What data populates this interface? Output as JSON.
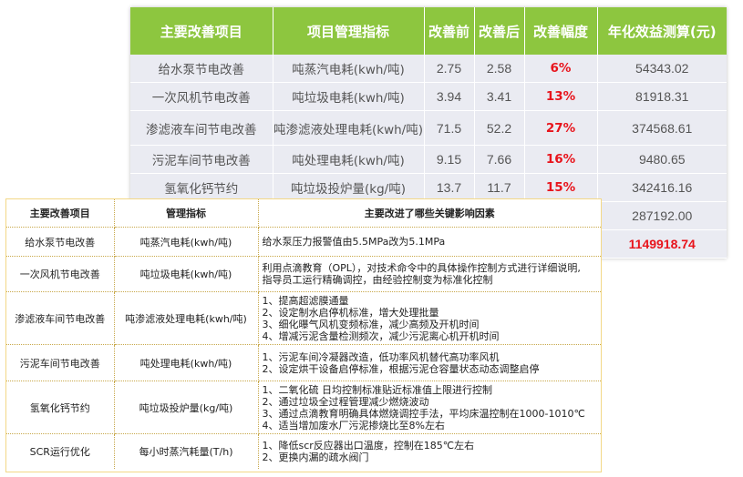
{
  "back_table": {
    "headers": [
      "主要改善项目",
      "项目管理指标",
      "改善前",
      "改善后",
      "改善幅度",
      "年化效益测算(元)"
    ],
    "rows": [
      {
        "project": "给水泵节电改善",
        "metric": "吨蒸汽电耗(kwh/吨)",
        "before": "2.75",
        "after": "2.58",
        "change": "6%",
        "benefit": "54343.02"
      },
      {
        "project": "一次风机节电改善",
        "metric": "吨垃圾电耗(kwh/吨)",
        "before": "3.94",
        "after": "3.41",
        "change": "13%",
        "benefit": "81918.31"
      },
      {
        "project": "渗滤液车间节电改善",
        "metric": "吨渗滤液处理电耗(kwh/吨)",
        "before": "71.5",
        "after": "52.2",
        "change": "27%",
        "benefit": "374568.61"
      },
      {
        "project": "污泥车间节电改善",
        "metric": "吨处理电耗(kwh/吨)",
        "before": "9.15",
        "after": "7.66",
        "change": "16%",
        "benefit": "9480.65"
      },
      {
        "project": "氢氧化钙节约",
        "metric": "吨垃圾投炉量(kg/吨)",
        "before": "13.7",
        "after": "11.7",
        "change": "15%",
        "benefit": "342416.16"
      },
      {
        "project": "",
        "metric": "",
        "before": "",
        "after": "",
        "change": "",
        "benefit": "287192.00"
      },
      {
        "project": "",
        "metric": "",
        "before": "",
        "after": "",
        "change": "",
        "benefit": "1149918.74"
      }
    ]
  },
  "front_table": {
    "headers": [
      "主要改善项目",
      "管理指标",
      "主要改进了哪些关键影响因素"
    ],
    "rows": [
      {
        "project": "给水泵节电改善",
        "metric": "吨蒸汽电耗(kwh/吨)",
        "factors": [
          "给水泵压力报警值由5.5MPa改为5.1MPa"
        ]
      },
      {
        "project": "一次风机节电改善",
        "metric": "吨垃圾电耗(kwh/吨)",
        "factors": [
          "利用点滴教育（OPL），对技术命令中的具体操作控制方式进行详细说明,",
          "指导员工运行精确调控，由经验控制变为标准化控制"
        ]
      },
      {
        "project": "渗滤液车间节电改善",
        "metric": "吨渗滤液处理电耗(kwh/吨)",
        "factors": [
          "1、提高超滤膜通量",
          "2、设定制水启停机标准，增大处理批量",
          "3、细化曝气风机变频标准，减少高频及开机时间",
          "4、增减污泥含量检测频次，减少污泥离心机开机时间"
        ]
      },
      {
        "project": "污泥车间节电改善",
        "metric": "吨处理电耗(kwh/吨)",
        "factors": [
          "1、污泥车间冷凝器改造，低功率风机替代高功率风机",
          "2、设定烘干设备启停标准，根据污泥仓容量状态动态调整启停"
        ]
      },
      {
        "project": "氢氧化钙节约",
        "metric": "吨垃圾投炉量(kg/吨)",
        "factors": [
          "1、二氧化硫 日均控制标准贴近标准值上限进行控制",
          "2、通过垃圾全过程管理减少燃烧波动",
          "3、通过点滴教育明确具体燃烧调控手法，平均床温控制在1000-1010℃",
          "4、适当增加废水厂污泥掺烧比至8%左右"
        ]
      },
      {
        "project": "SCR运行优化",
        "metric": "每小时蒸汽耗量(T/h)",
        "factors": [
          "1、降低scr反应器出口温度，控制在185℃左右",
          "2、更换内漏的疏水阀门"
        ]
      }
    ]
  }
}
